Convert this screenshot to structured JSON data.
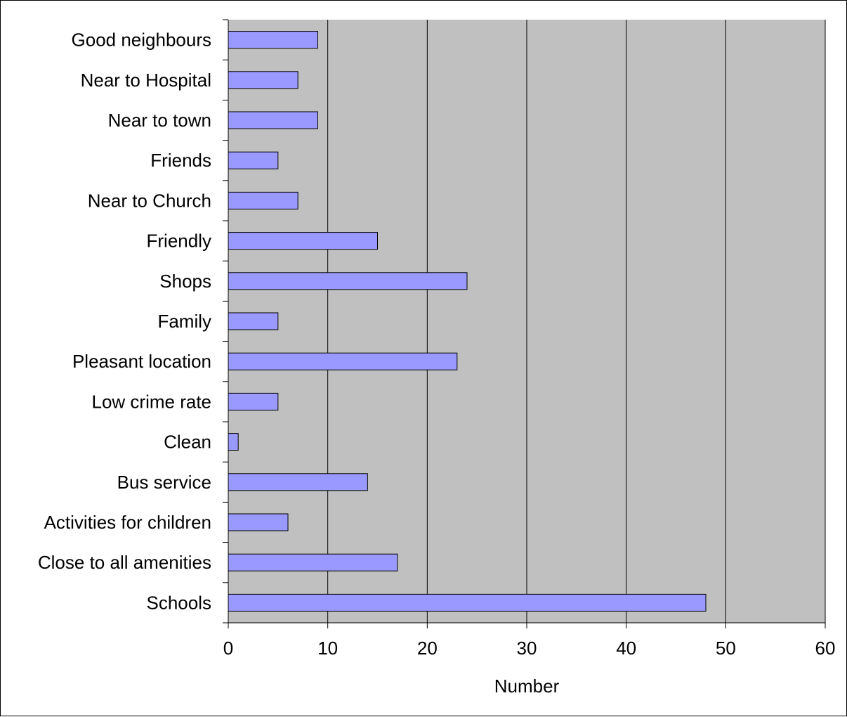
{
  "chart_data": {
    "type": "bar",
    "orientation": "horizontal",
    "categories": [
      "Good neighbours",
      "Near to Hospital",
      "Near to town",
      "Friends",
      "Near to Church",
      "Friendly",
      "Shops",
      "Family",
      "Pleasant location",
      "Low crime rate",
      "Clean",
      "Bus service",
      "Activities for children",
      "Close to all amenities",
      "Schools"
    ],
    "values": [
      9,
      7,
      9,
      5,
      7,
      15,
      24,
      5,
      23,
      5,
      1,
      14,
      6,
      17,
      48
    ],
    "xlabel": "Number",
    "ylabel": "",
    "xlim": [
      0,
      60
    ],
    "xticks": [
      "0",
      "10",
      "20",
      "30",
      "40",
      "50",
      "60"
    ],
    "grid": "vertical",
    "legend": "none",
    "colors": {
      "bar_fill": "#9999ff",
      "bar_stroke": "#000000",
      "plot_background": "#c0c0c0",
      "gridline": "#000000"
    }
  }
}
